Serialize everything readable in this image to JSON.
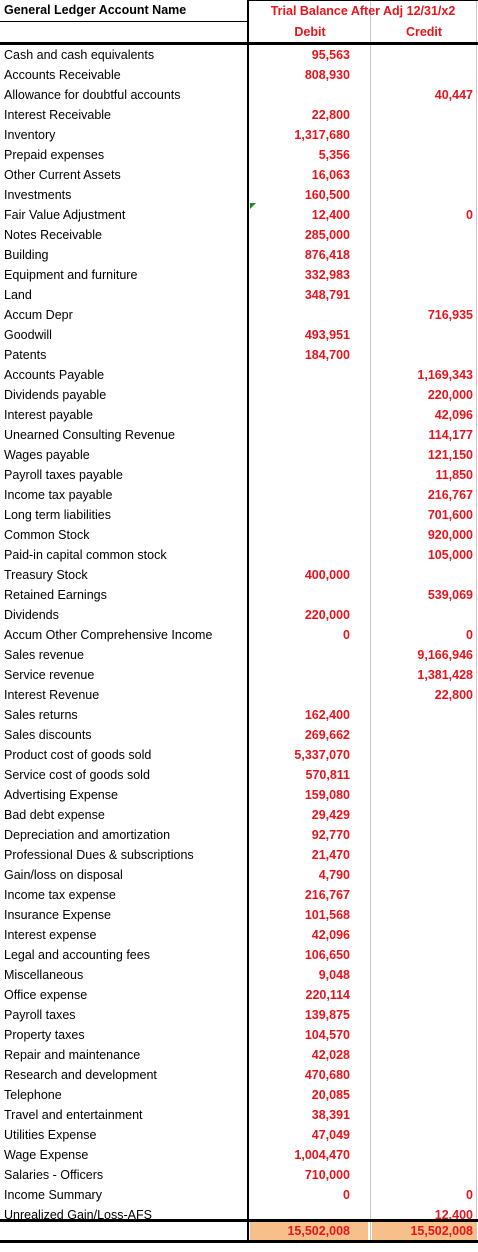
{
  "header": {
    "name_label": "General Ledger Account Name",
    "title": "Trial Balance After Adj 12/31/x2",
    "debit_label": "Debit",
    "credit_label": "Credit"
  },
  "rows": [
    {
      "name": "Cash and cash equivalents",
      "debit": "95,563",
      "credit": ""
    },
    {
      "name": "Accounts Receivable",
      "debit": "808,930",
      "credit": ""
    },
    {
      "name": "Allowance for doubtful accounts",
      "debit": "",
      "credit": "40,447"
    },
    {
      "name": "Interest Receivable",
      "debit": "22,800",
      "credit": ""
    },
    {
      "name": "Inventory",
      "debit": "1,317,680",
      "credit": ""
    },
    {
      "name": "Prepaid expenses",
      "debit": "5,356",
      "credit": ""
    },
    {
      "name": "Other Current Assets",
      "debit": "16,063",
      "credit": ""
    },
    {
      "name": "Investments",
      "debit": "160,500",
      "credit": ""
    },
    {
      "name": "Fair Value Adjustment",
      "debit": "12,400",
      "credit": "0"
    },
    {
      "name": "Notes Receivable",
      "debit": "285,000",
      "credit": ""
    },
    {
      "name": "Building",
      "debit": "876,418",
      "credit": ""
    },
    {
      "name": "Equipment and furniture",
      "debit": "332,983",
      "credit": ""
    },
    {
      "name": "Land",
      "debit": "348,791",
      "credit": ""
    },
    {
      "name": "Accum Depr",
      "debit": "",
      "credit": "716,935"
    },
    {
      "name": "Goodwill",
      "debit": "493,951",
      "credit": ""
    },
    {
      "name": "Patents",
      "debit": "184,700",
      "credit": ""
    },
    {
      "name": "Accounts Payable",
      "debit": "",
      "credit": "1,169,343"
    },
    {
      "name": "Dividends payable",
      "debit": "",
      "credit": "220,000"
    },
    {
      "name": "Interest payable",
      "debit": "",
      "credit": "42,096"
    },
    {
      "name": "Unearned Consulting Revenue",
      "debit": "",
      "credit": "114,177"
    },
    {
      "name": "Wages payable",
      "debit": "",
      "credit": "121,150"
    },
    {
      "name": "Payroll taxes payable",
      "debit": "",
      "credit": "11,850"
    },
    {
      "name": "Income tax payable",
      "debit": "",
      "credit": "216,767"
    },
    {
      "name": "Long term liabilities",
      "debit": "",
      "credit": "701,600"
    },
    {
      "name": "Common Stock",
      "debit": "",
      "credit": "920,000"
    },
    {
      "name": "Paid-in capital common stock",
      "debit": "",
      "credit": "105,000"
    },
    {
      "name": "Treasury Stock",
      "debit": "400,000",
      "credit": ""
    },
    {
      "name": "Retained Earnings",
      "debit": "",
      "credit": "539,069"
    },
    {
      "name": "Dividends",
      "debit": "220,000",
      "credit": ""
    },
    {
      "name": "Accum Other Comprehensive Income",
      "debit": "0",
      "credit": "0"
    },
    {
      "name": "Sales revenue",
      "debit": "",
      "credit": "9,166,946"
    },
    {
      "name": "Service revenue",
      "debit": "",
      "credit": "1,381,428"
    },
    {
      "name": "Interest Revenue",
      "debit": "",
      "credit": "22,800"
    },
    {
      "name": "Sales returns",
      "debit": "162,400",
      "credit": ""
    },
    {
      "name": "Sales discounts",
      "debit": "269,662",
      "credit": ""
    },
    {
      "name": "Product cost of goods sold",
      "debit": "5,337,070",
      "credit": ""
    },
    {
      "name": "Service cost of goods sold",
      "debit": "570,811",
      "credit": ""
    },
    {
      "name": "Advertising Expense",
      "debit": "159,080",
      "credit": ""
    },
    {
      "name": "Bad debt expense",
      "debit": "29,429",
      "credit": ""
    },
    {
      "name": "Depreciation and amortization",
      "debit": "92,770",
      "credit": ""
    },
    {
      "name": "Professional Dues & subscriptions",
      "debit": "21,470",
      "credit": ""
    },
    {
      "name": "Gain/loss on disposal",
      "debit": "4,790",
      "credit": ""
    },
    {
      "name": "Income tax expense",
      "debit": "216,767",
      "credit": ""
    },
    {
      "name": "Insurance Expense",
      "debit": "101,568",
      "credit": ""
    },
    {
      "name": "Interest expense",
      "debit": "42,096",
      "credit": ""
    },
    {
      "name": "Legal and accounting fees",
      "debit": "106,650",
      "credit": ""
    },
    {
      "name": "Miscellaneous",
      "debit": "9,048",
      "credit": ""
    },
    {
      "name": "Office expense",
      "debit": "220,114",
      "credit": ""
    },
    {
      "name": "Payroll taxes",
      "debit": "139,875",
      "credit": ""
    },
    {
      "name": "Property taxes",
      "debit": "104,570",
      "credit": ""
    },
    {
      "name": "Repair and maintenance",
      "debit": "42,028",
      "credit": ""
    },
    {
      "name": "Research and development",
      "debit": "470,680",
      "credit": ""
    },
    {
      "name": "Telephone",
      "debit": "20,085",
      "credit": ""
    },
    {
      "name": "Travel and entertainment",
      "debit": "38,391",
      "credit": ""
    },
    {
      "name": "Utilities Expense",
      "debit": "47,049",
      "credit": ""
    },
    {
      "name": "Wage Expense",
      "debit": "1,004,470",
      "credit": ""
    },
    {
      "name": "Salaries - Officers",
      "debit": "710,000",
      "credit": ""
    },
    {
      "name": "Income Summary",
      "debit": "0",
      "credit": "0"
    },
    {
      "name": "Unrealized Gain/Loss-AFS",
      "debit": "",
      "credit": "12,400"
    }
  ],
  "totals": {
    "debit": "15,502,008",
    "credit": "15,502,008"
  },
  "colors": {
    "amount": "#e8141c",
    "total_fill": "#f7bf8a"
  }
}
